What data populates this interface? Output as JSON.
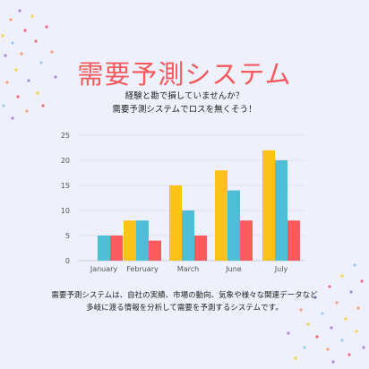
{
  "title": "需要予測システム",
  "subtitle": [
    "経験と勘で損していませんか？",
    "需要予測システムでロスを無くそう！"
  ],
  "description": [
    "需要予測システムは、自社の実績、市場の動向、気象や様々な関連データなど",
    "多岐に渡る情報を分析して需要を予測するシステムです。"
  ],
  "colors": {
    "title": "#f4595c",
    "series": [
      "#4ebdd6",
      "#fbc21b",
      "#fb5b5f"
    ],
    "background": "#eef0fb",
    "dots": [
      "#f7a278",
      "#a98bd6",
      "#f9d04b",
      "#f26b7a",
      "#9ec9f0"
    ]
  },
  "chart_data": {
    "type": "bar",
    "categories": [
      "January",
      "February",
      "March",
      "June",
      "July"
    ],
    "series": [
      {
        "values": [
          0,
          8,
          15,
          18,
          22
        ],
        "color": "#fbc21b"
      },
      {
        "values": [
          5,
          8,
          10,
          14,
          20
        ],
        "color": "#4ebdd6"
      },
      {
        "values": [
          5,
          4,
          5,
          8,
          8
        ],
        "color": "#fb5b5f"
      }
    ],
    "ylim": [
      0,
      25
    ],
    "yticks": [
      0,
      5,
      10,
      15,
      20,
      25
    ],
    "grid": true
  }
}
